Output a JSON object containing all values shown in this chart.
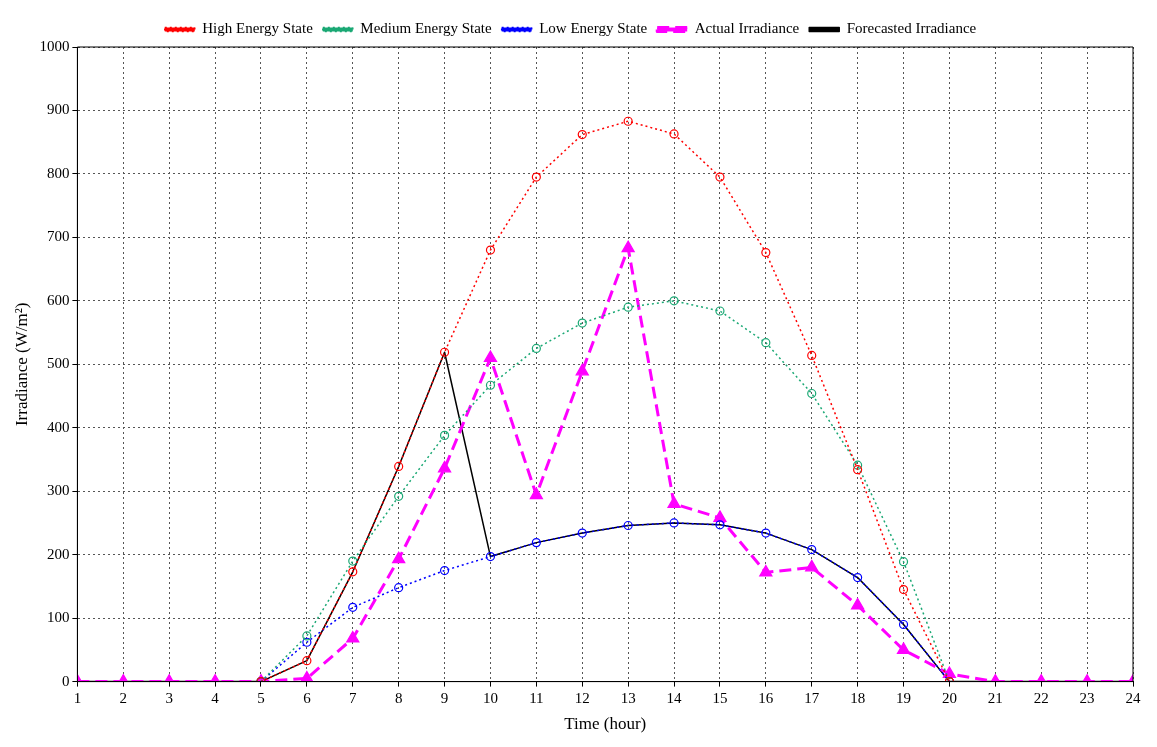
{
  "chart_data": {
    "type": "line",
    "xlabel": "Time (hour)",
    "ylabel": "Irradiance (W/m²)",
    "x": [
      1,
      2,
      3,
      4,
      5,
      6,
      7,
      8,
      9,
      10,
      11,
      12,
      13,
      14,
      15,
      16,
      17,
      18,
      19,
      20,
      21,
      22,
      23,
      24
    ],
    "xlim": [
      1,
      24
    ],
    "xticks": [
      1,
      2,
      3,
      4,
      5,
      6,
      7,
      8,
      9,
      10,
      11,
      12,
      13,
      14,
      15,
      16,
      17,
      18,
      19,
      20,
      21,
      22,
      23,
      24
    ],
    "ylim": [
      0,
      1000
    ],
    "yticks": [
      0,
      100,
      200,
      300,
      400,
      500,
      600,
      700,
      800,
      900,
      1000
    ],
    "grid": true,
    "legend": "top",
    "series": [
      {
        "name": "High Energy State",
        "color": "#ff0000",
        "marker": "circle",
        "line_style": "dotted",
        "values": [
          null,
          null,
          null,
          null,
          0,
          33,
          173,
          339,
          519,
          680,
          795,
          862,
          883,
          863,
          795,
          676,
          514,
          334,
          145,
          0,
          null,
          null,
          null,
          null
        ]
      },
      {
        "name": "Medium Energy State",
        "color": "#1aa874",
        "marker": "circle",
        "line_style": "dotted",
        "values": [
          null,
          null,
          null,
          null,
          0,
          72,
          190,
          292,
          388,
          467,
          525,
          565,
          590,
          600,
          584,
          534,
          454,
          341,
          189,
          0,
          null,
          null,
          null,
          null
        ]
      },
      {
        "name": "Low Energy State",
        "color": "#0000ff",
        "marker": "circle",
        "line_style": "dotted",
        "values": [
          null,
          null,
          null,
          null,
          0,
          62,
          117,
          148,
          175,
          197,
          219,
          234,
          246,
          250,
          247,
          234,
          208,
          164,
          90,
          0,
          null,
          null,
          null,
          null
        ]
      },
      {
        "name": "Actual Irradiance",
        "color": "#ff00ff",
        "marker": "triangle",
        "line_style": "dashed",
        "values": [
          0,
          0,
          0,
          0,
          0,
          5,
          68,
          193,
          336,
          510,
          294,
          489,
          683,
          280,
          258,
          172,
          180,
          120,
          50,
          12,
          0,
          0,
          0,
          0
        ]
      },
      {
        "name": "Forecasted Irradiance",
        "color": "#000000",
        "marker": "none",
        "line_style": "solid",
        "values": [
          0,
          0,
          0,
          0,
          0,
          33,
          173,
          339,
          519,
          197,
          219,
          234,
          246,
          250,
          247,
          234,
          208,
          164,
          90,
          0,
          0,
          0,
          0,
          0
        ]
      }
    ]
  }
}
